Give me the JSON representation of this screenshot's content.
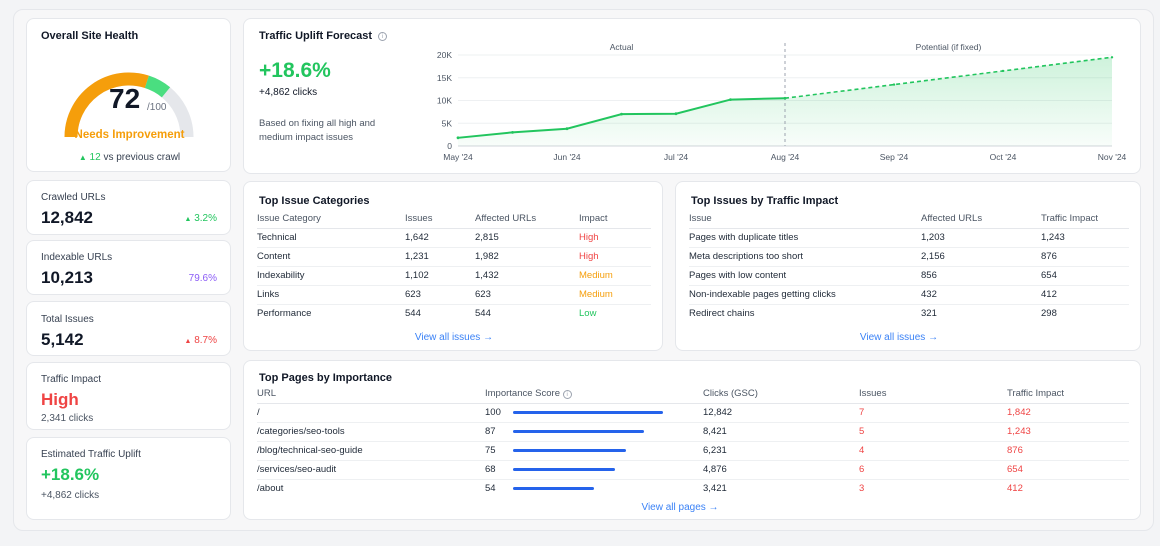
{
  "health": {
    "title": "Overall Site Health",
    "score": "72",
    "max": "/100",
    "status": "Needs Improvement",
    "delta_arrow": "▲",
    "delta_value": "12",
    "delta_text": "vs previous crawl",
    "score_value": 72
  },
  "stats": [
    {
      "label": "Crawled URLs",
      "value": "12,842",
      "delta_arrow": "▲",
      "delta": "3.2%"
    },
    {
      "label": "Indexable URLs",
      "value": "10,213",
      "delta_arrow": "",
      "delta": "79.6%"
    },
    {
      "label": "Total Issues",
      "value": "5,142",
      "delta_arrow": "▲",
      "delta": "8.7%"
    },
    {
      "label": "Traffic Impact",
      "value": "High",
      "sub": "2,341 clicks"
    },
    {
      "label": "Estimated Traffic Uplift",
      "value": "+18.6%",
      "sub": "+4,862 clicks"
    }
  ],
  "forecast": {
    "title": "Traffic Uplift Forecast",
    "info_icon": "info-icon",
    "percent": "+18.6%",
    "clicks": "+4,862 clicks",
    "note": "Based on fixing all high and medium impact issues",
    "actual_label": "Actual",
    "potential_label": "Potential (if fixed)"
  },
  "chart_data": {
    "type": "line",
    "yticks": [
      "20K",
      "15K",
      "10K",
      "5K",
      "0"
    ],
    "ylim": [
      0,
      20000
    ],
    "xticks": [
      "May '24",
      "Jun '24",
      "Jul '24",
      "Aug '24",
      "Sep '24",
      "Oct '24",
      "Nov '24"
    ],
    "series": [
      {
        "name": "Actual",
        "x": [
          0,
          0.5,
          1.0,
          1.5,
          2.0,
          2.5,
          3.0
        ],
        "y": [
          1800,
          3000,
          3800,
          7000,
          7100,
          10200,
          10500
        ]
      },
      {
        "name": "Potential (if fixed)",
        "x": [
          3.0,
          4.0,
          5.0,
          6.0
        ],
        "y": [
          10500,
          13500,
          16500,
          19500
        ]
      }
    ]
  },
  "categories": {
    "title": "Top Issue Categories",
    "headers": [
      "Issue Category",
      "Issues",
      "Affected URLs",
      "Impact"
    ],
    "rows": [
      [
        "Technical",
        "1,642",
        "2,815",
        "High"
      ],
      [
        "Content",
        "1,231",
        "1,982",
        "High"
      ],
      [
        "Indexability",
        "1,102",
        "1,432",
        "Medium"
      ],
      [
        "Links",
        "623",
        "623",
        "Medium"
      ],
      [
        "Performance",
        "544",
        "544",
        "Low"
      ]
    ],
    "link": "View all issues →"
  },
  "traffic_issues": {
    "title": "Top Issues by Traffic Impact",
    "headers": [
      "Issue",
      "Affected URLs",
      "Traffic Impact"
    ],
    "rows": [
      [
        "Pages with duplicate titles",
        "1,203",
        "1,243"
      ],
      [
        "Meta descriptions too short",
        "2,156",
        "876"
      ],
      [
        "Pages with low content",
        "856",
        "654"
      ],
      [
        "Non-indexable pages getting clicks",
        "432",
        "412"
      ],
      [
        "Redirect chains",
        "321",
        "298"
      ]
    ],
    "link": "View all issues →"
  },
  "pages": {
    "title": "Top Pages by Importance",
    "headers": [
      "URL",
      "Importance Score",
      "Clicks (GSC)",
      "Issues",
      "Traffic Impact"
    ],
    "rows": [
      {
        "url": "/",
        "score": "100",
        "score_value": 100,
        "clicks": "12,842",
        "issues": "7",
        "impact": "1,842"
      },
      {
        "url": "/categories/seo-tools",
        "score": "87",
        "score_value": 87,
        "clicks": "8,421",
        "issues": "5",
        "impact": "1,243"
      },
      {
        "url": "/blog/technical-seo-guide",
        "score": "75",
        "score_value": 75,
        "clicks": "6,231",
        "issues": "4",
        "impact": "876"
      },
      {
        "url": "/services/seo-audit",
        "score": "68",
        "score_value": 68,
        "clicks": "4,876",
        "issues": "6",
        "impact": "654"
      },
      {
        "url": "/about",
        "score": "54",
        "score_value": 54,
        "clicks": "3,421",
        "issues": "3",
        "impact": "412"
      }
    ],
    "link": "View all pages →"
  },
  "colors": {
    "green": "#22c55e",
    "red": "#ef4444",
    "orange": "#f59e0b",
    "purple": "#8b5cf6",
    "blue": "#2563eb"
  }
}
